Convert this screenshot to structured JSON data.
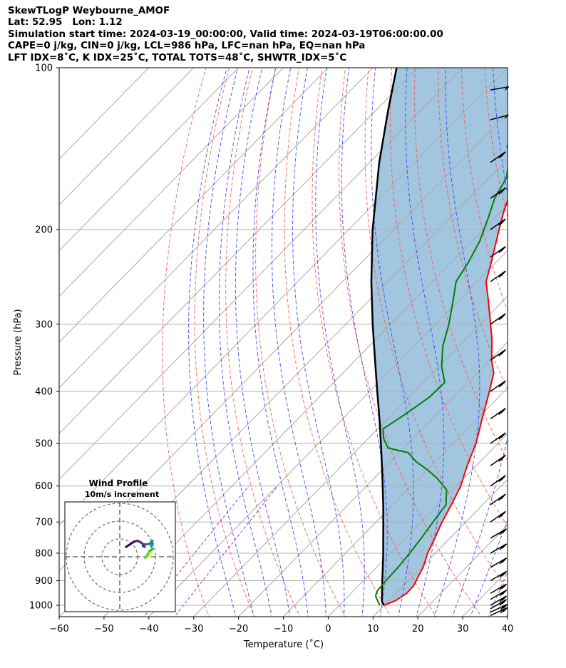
{
  "header": {
    "lines": [
      "SkewTLogP Weybourne_AMOF",
      "Lat: 52.95   Lon: 1.12",
      "Simulation start time: 2024-03-19_00:00:00, Valid time: 2024-03-19T06:00:00.00",
      "CAPE=0 j/kg, CIN=0 j/kg, LCL=986 hPa, LFC=nan hPa, EQ=nan hPa",
      "LFT IDX=8˚C, K IDX=25˚C, TOTAL TOTS=48˚C, SHWTR_IDX=5˚C"
    ]
  },
  "chart_data": {
    "type": "line",
    "subtype": "skew-T log-P",
    "xlabel": "Temperature (˚C)",
    "ylabel": "Pressure (hPa)",
    "xlim": [
      -60,
      40
    ],
    "ylim": [
      1050,
      100
    ],
    "y_scale": "log",
    "x_ticks": [
      "−60",
      "−50",
      "−40",
      "−30",
      "−20",
      "−10",
      "0",
      "10",
      "20",
      "30",
      "40"
    ],
    "y_ticks": [
      "100",
      "200",
      "300",
      "400",
      "500",
      "600",
      "700",
      "800",
      "900",
      "1000"
    ],
    "grid": true,
    "colors": {
      "temperature": "#ff0000",
      "dewpoint": "#008000",
      "parcel": "#000000",
      "shading": "#a2c6e0",
      "dry_adiabats": "#ff5050",
      "moist_adiabats": "#3b3bff",
      "mixing_ratio": "#9b30d0",
      "isotherms": "#a9a9a9",
      "barbs": "#000000"
    },
    "series": [
      {
        "name": "",
        "variable": "temperature",
        "points": [
          {
            "p": 1000,
            "t": 10
          },
          {
            "p": 980,
            "t": 11.5
          },
          {
            "p": 950,
            "t": 12.4
          },
          {
            "p": 920,
            "t": 12.3
          },
          {
            "p": 880,
            "t": 11.2
          },
          {
            "p": 850,
            "t": 10.4
          },
          {
            "p": 800,
            "t": 8.3
          },
          {
            "p": 750,
            "t": 6.6
          },
          {
            "p": 700,
            "t": 4.7
          },
          {
            "p": 650,
            "t": 3.0
          },
          {
            "p": 600,
            "t": 1.0
          },
          {
            "p": 550,
            "t": -2.0
          },
          {
            "p": 500,
            "t": -4.9
          },
          {
            "p": 450,
            "t": -8.9
          },
          {
            "p": 400,
            "t": -13.3
          },
          {
            "p": 370,
            "t": -16.3
          },
          {
            "p": 350,
            "t": -19.6
          },
          {
            "p": 320,
            "t": -24.1
          },
          {
            "p": 300,
            "t": -27.7
          },
          {
            "p": 270,
            "t": -33.6
          },
          {
            "p": 250,
            "t": -38.0
          },
          {
            "p": 230,
            "t": -41.1
          },
          {
            "p": 200,
            "t": -46.5
          },
          {
            "p": 185,
            "t": -49.4
          },
          {
            "p": 170,
            "t": -52.2
          },
          {
            "p": 160,
            "t": -54.3
          },
          {
            "p": 150,
            "t": -56.2
          },
          {
            "p": 140,
            "t": -57.1
          },
          {
            "p": 130,
            "t": -57.7
          },
          {
            "p": 120,
            "t": -58.7
          },
          {
            "p": 110,
            "t": -59.1
          },
          {
            "p": 100,
            "t": -60.8
          }
        ]
      },
      {
        "name": "",
        "variable": "dewpoint",
        "points": [
          {
            "p": 1000,
            "t": 9.0
          },
          {
            "p": 980,
            "t": 7.5
          },
          {
            "p": 960,
            "t": 6.0
          },
          {
            "p": 940,
            "t": 5.3
          },
          {
            "p": 900,
            "t": 5.0
          },
          {
            "p": 850,
            "t": 4.8
          },
          {
            "p": 800,
            "t": 4.3
          },
          {
            "p": 750,
            "t": 3.6
          },
          {
            "p": 700,
            "t": 2.7
          },
          {
            "p": 650,
            "t": 1.8
          },
          {
            "p": 610,
            "t": -1.3
          },
          {
            "p": 580,
            "t": -6.0
          },
          {
            "p": 560,
            "t": -9.9
          },
          {
            "p": 540,
            "t": -14.4
          },
          {
            "p": 520,
            "t": -18.0
          },
          {
            "p": 510,
            "t": -23.5
          },
          {
            "p": 490,
            "t": -26.5
          },
          {
            "p": 470,
            "t": -28.8
          },
          {
            "p": 440,
            "t": -27.0
          },
          {
            "p": 410,
            "t": -25.4
          },
          {
            "p": 385,
            "t": -25.2
          },
          {
            "p": 360,
            "t": -29.3
          },
          {
            "p": 330,
            "t": -33.5
          },
          {
            "p": 300,
            "t": -37.0
          },
          {
            "p": 270,
            "t": -41.4
          },
          {
            "p": 250,
            "t": -44.7
          },
          {
            "p": 230,
            "t": -46.2
          },
          {
            "p": 210,
            "t": -48.3
          },
          {
            "p": 190,
            "t": -51.5
          },
          {
            "p": 175,
            "t": -54.3
          },
          {
            "p": 160,
            "t": -56.2
          },
          {
            "p": 145,
            "t": -60.6
          },
          {
            "p": 140,
            "t": -62.9
          },
          {
            "p": 130,
            "t": -65.0
          },
          {
            "p": 100,
            "t": -77.0
          }
        ]
      },
      {
        "name": "",
        "variable": "parcel",
        "points": [
          {
            "p": 1000,
            "t": 10.0
          },
          {
            "p": 986,
            "t": 8.8
          },
          {
            "p": 950,
            "t": 6.9
          },
          {
            "p": 900,
            "t": 4.2
          },
          {
            "p": 850,
            "t": 1.4
          },
          {
            "p": 800,
            "t": -1.6
          },
          {
            "p": 750,
            "t": -4.9
          },
          {
            "p": 700,
            "t": -8.4
          },
          {
            "p": 650,
            "t": -12.2
          },
          {
            "p": 600,
            "t": -16.4
          },
          {
            "p": 550,
            "t": -21.0
          },
          {
            "p": 500,
            "t": -26.1
          },
          {
            "p": 450,
            "t": -31.8
          },
          {
            "p": 400,
            "t": -38.3
          },
          {
            "p": 350,
            "t": -45.6
          },
          {
            "p": 300,
            "t": -54.0
          },
          {
            "p": 250,
            "t": -63.6
          },
          {
            "p": 200,
            "t": -74.7
          },
          {
            "p": 150,
            "t": -87.9
          },
          {
            "p": 120,
            "t": -97.3
          },
          {
            "p": 100,
            "t": -104.7
          }
        ]
      }
    ],
    "wind_barbs": [
      {
        "p": 1045,
        "speed_kt": 20,
        "dir_deg": 245
      },
      {
        "p": 1030,
        "speed_kt": 20,
        "dir_deg": 245
      },
      {
        "p": 1015,
        "speed_kt": 20,
        "dir_deg": 240
      },
      {
        "p": 1000,
        "speed_kt": 20,
        "dir_deg": 240
      },
      {
        "p": 975,
        "speed_kt": 20,
        "dir_deg": 240
      },
      {
        "p": 950,
        "speed_kt": 20,
        "dir_deg": 240
      },
      {
        "p": 900,
        "speed_kt": 20,
        "dir_deg": 240
      },
      {
        "p": 850,
        "speed_kt": 20,
        "dir_deg": 240
      },
      {
        "p": 800,
        "speed_kt": 20,
        "dir_deg": 240
      },
      {
        "p": 750,
        "speed_kt": 20,
        "dir_deg": 240
      },
      {
        "p": 700,
        "speed_kt": 20,
        "dir_deg": 235
      },
      {
        "p": 650,
        "speed_kt": 20,
        "dir_deg": 235
      },
      {
        "p": 600,
        "speed_kt": 20,
        "dir_deg": 235
      },
      {
        "p": 550,
        "speed_kt": 20,
        "dir_deg": 235
      },
      {
        "p": 500,
        "speed_kt": 20,
        "dir_deg": 235
      },
      {
        "p": 450,
        "speed_kt": 20,
        "dir_deg": 235
      },
      {
        "p": 400,
        "speed_kt": 20,
        "dir_deg": 235
      },
      {
        "p": 350,
        "speed_kt": 20,
        "dir_deg": 235
      },
      {
        "p": 300,
        "speed_kt": 20,
        "dir_deg": 235
      },
      {
        "p": 250,
        "speed_kt": 20,
        "dir_deg": 235
      },
      {
        "p": 225,
        "speed_kt": 20,
        "dir_deg": 235
      },
      {
        "p": 200,
        "speed_kt": 20,
        "dir_deg": 235
      },
      {
        "p": 175,
        "speed_kt": 20,
        "dir_deg": 235
      },
      {
        "p": 150,
        "speed_kt": 20,
        "dir_deg": 235
      },
      {
        "p": 125,
        "speed_kt": 10,
        "dir_deg": 255
      },
      {
        "p": 110,
        "speed_kt": 10,
        "dir_deg": 260
      }
    ],
    "hodograph": {
      "title": "Wind Profile",
      "subtitle": "10m/s increment",
      "ring_spacing_ms": 10,
      "rings": [
        1,
        2,
        3
      ],
      "colormap": "viridis",
      "trace": [
        {
          "u": 18.0,
          "v": 3.0
        },
        {
          "u": 17.5,
          "v": 2.0
        },
        {
          "u": 17.0,
          "v": 1.5
        },
        {
          "u": 16.5,
          "v": 1.0
        },
        {
          "u": 16.0,
          "v": 0.5
        },
        {
          "u": 15.5,
          "v": 0.2
        },
        {
          "u": 15.0,
          "v": -0.2
        },
        {
          "u": 14.5,
          "v": -0.5
        },
        {
          "u": 14.2,
          "v": -0.7
        },
        {
          "u": 16.5,
          "v": 3.0
        },
        {
          "u": 18.5,
          "v": 4.5
        },
        {
          "u": 18.0,
          "v": 5.5
        },
        {
          "u": 17.5,
          "v": 6.0
        },
        {
          "u": 18.0,
          "v": 6.5
        },
        {
          "u": 17.5,
          "v": 7.0
        },
        {
          "u": 18.5,
          "v": 7.5
        },
        {
          "u": 18.0,
          "v": 8.0
        },
        {
          "u": 18.3,
          "v": 9.0
        },
        {
          "u": 17.0,
          "v": 7.5
        },
        {
          "u": 15.5,
          "v": 7.0
        },
        {
          "u": 14.5,
          "v": 7.0
        },
        {
          "u": 13.5,
          "v": 7.0
        },
        {
          "u": 13.0,
          "v": 6.0
        },
        {
          "u": 14.0,
          "v": 5.5
        },
        {
          "u": 13.5,
          "v": 6.5
        },
        {
          "u": 12.0,
          "v": 8.0
        },
        {
          "u": 10.0,
          "v": 9.0
        },
        {
          "u": 8.0,
          "v": 8.5
        },
        {
          "u": 6.5,
          "v": 7.5
        },
        {
          "u": 5.0,
          "v": 6.5
        },
        {
          "u": 3.5,
          "v": 5.5
        }
      ]
    }
  }
}
